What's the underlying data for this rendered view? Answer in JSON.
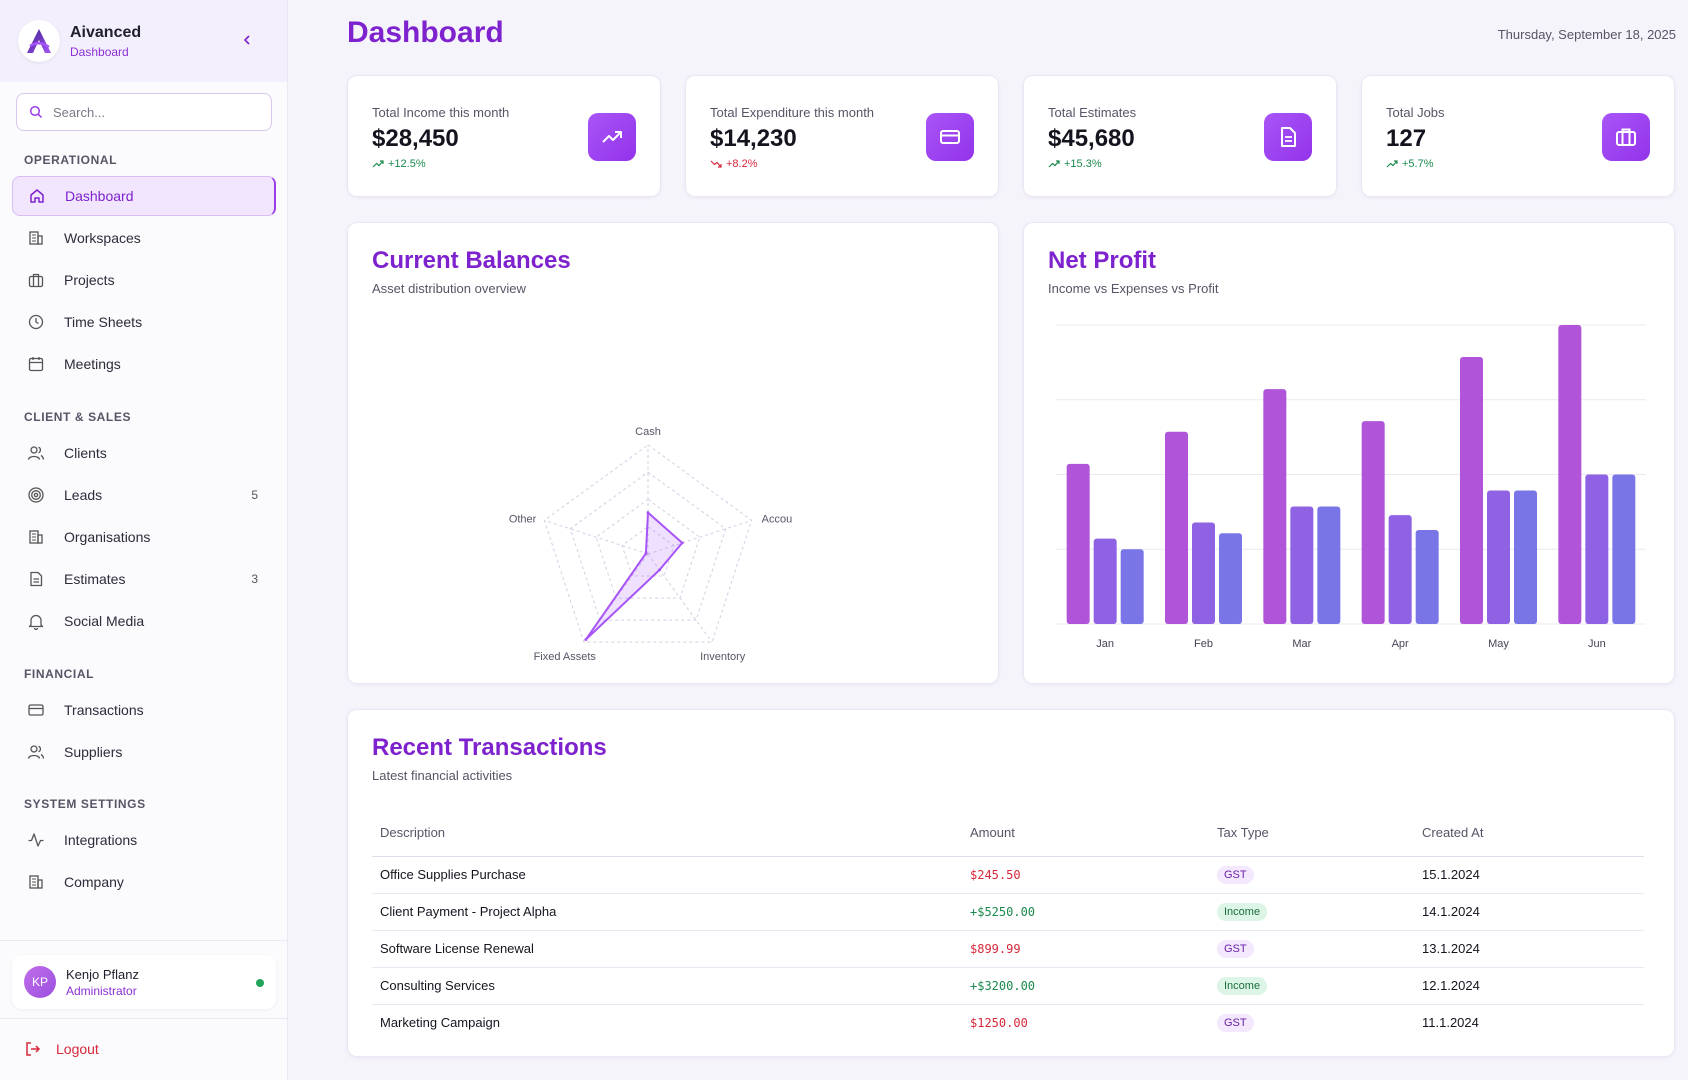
{
  "brand": {
    "name": "Aivanced",
    "subtitle": "Dashboard"
  },
  "search": {
    "placeholder": "Search..."
  },
  "sidebar": {
    "sections": [
      {
        "title": "OPERATIONAL",
        "items": [
          {
            "label": "Dashboard",
            "icon": "home-icon",
            "active": true
          },
          {
            "label": "Workspaces",
            "icon": "building-icon"
          },
          {
            "label": "Projects",
            "icon": "briefcase-icon"
          },
          {
            "label": "Time Sheets",
            "icon": "clock-icon"
          },
          {
            "label": "Meetings",
            "icon": "calendar-icon"
          }
        ]
      },
      {
        "title": "CLIENT & SALES",
        "items": [
          {
            "label": "Clients",
            "icon": "users-icon"
          },
          {
            "label": "Leads",
            "icon": "target-icon",
            "badge": "5"
          },
          {
            "label": "Organisations",
            "icon": "building-icon"
          },
          {
            "label": "Estimates",
            "icon": "document-icon",
            "badge": "3"
          },
          {
            "label": "Social Media",
            "icon": "bell-icon"
          }
        ]
      },
      {
        "title": "FINANCIAL",
        "items": [
          {
            "label": "Transactions",
            "icon": "credit-card-icon"
          },
          {
            "label": "Suppliers",
            "icon": "users-icon"
          }
        ]
      },
      {
        "title": "SYSTEM SETTINGS",
        "items": [
          {
            "label": "Integrations",
            "icon": "activity-icon"
          },
          {
            "label": "Company",
            "icon": "building-icon"
          }
        ]
      }
    ]
  },
  "user": {
    "initials": "KP",
    "name": "Kenjo Pflanz",
    "role": "Administrator",
    "status_color": "#22a55a"
  },
  "logout_label": "Logout",
  "header": {
    "title": "Dashboard",
    "date": "Thursday, September 18, 2025"
  },
  "stats": [
    {
      "label": "Total Income this month",
      "value": "$28,450",
      "change": "+12.5%",
      "trend": "up",
      "icon": "trending-up-icon"
    },
    {
      "label": "Total Expenditure this month",
      "value": "$14,230",
      "change": "+8.2%",
      "trend": "down",
      "icon": "credit-card-icon"
    },
    {
      "label": "Total Estimates",
      "value": "$45,680",
      "change": "+15.3%",
      "trend": "up",
      "icon": "document-icon"
    },
    {
      "label": "Total Jobs",
      "value": "127",
      "change": "+5.7%",
      "trend": "up",
      "icon": "briefcase-icon"
    }
  ],
  "balances": {
    "title": "Current Balances",
    "subtitle": "Asset distribution overview"
  },
  "profit": {
    "title": "Net Profit",
    "subtitle": "Income vs Expenses vs Profit"
  },
  "chart_data": [
    {
      "type": "radar",
      "title": "Current Balances",
      "subtitle": "Asset distribution overview",
      "axes": [
        "Cash",
        "Accou",
        "Inventory",
        "Fixed Assets",
        "Other"
      ],
      "values": [
        0.38,
        0.33,
        0.18,
        0.97,
        0.02
      ],
      "max": 1,
      "rings": 4
    },
    {
      "type": "bar",
      "title": "Net Profit",
      "subtitle": "Income vs Expenses vs Profit",
      "categories": [
        "Jan",
        "Feb",
        "Mar",
        "Apr",
        "May",
        "Jun"
      ],
      "series": [
        {
          "name": "Income",
          "values": [
            15000,
            18000,
            22000,
            19000,
            25000,
            28000
          ],
          "color": "#b054d9"
        },
        {
          "name": "Expenses",
          "values": [
            8000,
            9500,
            11000,
            10200,
            12500,
            14000
          ],
          "color": "#8f62e3"
        },
        {
          "name": "Profit",
          "values": [
            7000,
            8500,
            11000,
            8800,
            12500,
            14000
          ],
          "color": "#7a75e6"
        }
      ],
      "ylim": [
        0,
        28000
      ],
      "grid": true
    }
  ],
  "transactions": {
    "title": "Recent Transactions",
    "subtitle": "Latest financial activities",
    "columns": [
      "Description",
      "Amount",
      "Tax Type",
      "Created At"
    ],
    "rows": [
      {
        "description": "Office Supplies Purchase",
        "amount": "$245.50",
        "sign": "neg",
        "tax": "GST",
        "date": "15.1.2024"
      },
      {
        "description": "Client Payment - Project Alpha",
        "amount": "+$5250.00",
        "sign": "pos",
        "tax": "Income",
        "date": "14.1.2024"
      },
      {
        "description": "Software License Renewal",
        "amount": "$899.99",
        "sign": "neg",
        "tax": "GST",
        "date": "13.1.2024"
      },
      {
        "description": "Consulting Services",
        "amount": "+$3200.00",
        "sign": "pos",
        "tax": "Income",
        "date": "12.1.2024"
      },
      {
        "description": "Marketing Campaign",
        "amount": "$1250.00",
        "sign": "neg",
        "tax": "GST",
        "date": "11.1.2024"
      }
    ]
  },
  "colors": {
    "accent": "#7e22ce",
    "accent_light": "#a855f7",
    "negative": "#d6283a",
    "positive": "#1b8a4d"
  }
}
